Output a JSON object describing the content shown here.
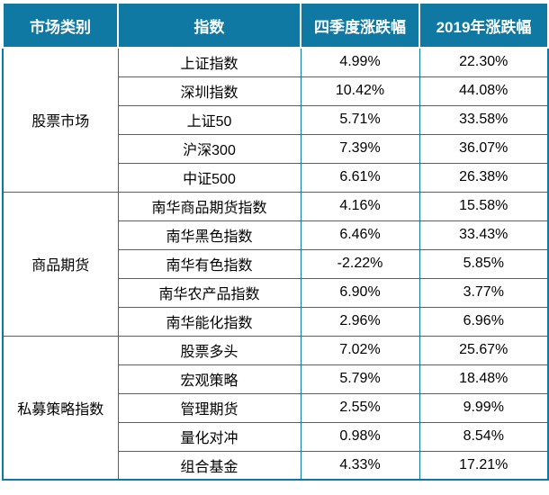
{
  "header": {
    "columns": [
      "市场类别",
      "指数",
      "四季度涨跌幅",
      "2019年涨跌幅"
    ]
  },
  "groups": [
    {
      "category": "股票市场",
      "rows": [
        {
          "index": "上证指数",
          "q4_change": "4.99%",
          "y2019_change": "22.30%"
        },
        {
          "index": "深圳指数",
          "q4_change": "10.42%",
          "y2019_change": "44.08%"
        },
        {
          "index": "上证50",
          "q4_change": "5.71%",
          "y2019_change": "33.58%"
        },
        {
          "index": "沪深300",
          "q4_change": "7.39%",
          "y2019_change": "36.07%"
        },
        {
          "index": "中证500",
          "q4_change": "6.61%",
          "y2019_change": "26.38%"
        }
      ]
    },
    {
      "category": "商品期货",
      "rows": [
        {
          "index": "南华商品期货指数",
          "q4_change": "4.16%",
          "y2019_change": "15.58%"
        },
        {
          "index": "南华黑色指数",
          "q4_change": "6.46%",
          "y2019_change": "33.43%"
        },
        {
          "index": "南华有色指数",
          "q4_change": "-2.22%",
          "y2019_change": "5.85%"
        },
        {
          "index": "南华农产品指数",
          "q4_change": "6.90%",
          "y2019_change": "3.77%"
        },
        {
          "index": "南华能化指数",
          "q4_change": "2.96%",
          "y2019_change": "6.96%"
        }
      ]
    },
    {
      "category": "私募策略指数",
      "rows": [
        {
          "index": "股票多头",
          "q4_change": "7.02%",
          "y2019_change": "25.67%"
        },
        {
          "index": "宏观策略",
          "q4_change": "5.79%",
          "y2019_change": "18.48%"
        },
        {
          "index": "管理期货",
          "q4_change": "2.55%",
          "y2019_change": "9.99%"
        },
        {
          "index": "量化对冲",
          "q4_change": "0.98%",
          "y2019_change": "8.54%"
        },
        {
          "index": "组合基金",
          "q4_change": "4.33%",
          "y2019_change": "17.21%"
        }
      ]
    }
  ],
  "colors": {
    "header_bg": "#0F78A3",
    "grid_line": "#0F78A3",
    "header_text": "#FFFFFF",
    "body_text": "#000000",
    "cell_bg": "#FFFFFF"
  },
  "chart_data": {
    "type": "table",
    "columns": [
      "市场类别",
      "指数",
      "四季度涨跌幅",
      "2019年涨跌幅"
    ],
    "rows": [
      [
        "股票市场",
        "上证指数",
        "4.99%",
        "22.30%"
      ],
      [
        "股票市场",
        "深圳指数",
        "10.42%",
        "44.08%"
      ],
      [
        "股票市场",
        "上证50",
        "5.71%",
        "33.58%"
      ],
      [
        "股票市场",
        "沪深300",
        "7.39%",
        "36.07%"
      ],
      [
        "股票市场",
        "中证500",
        "6.61%",
        "26.38%"
      ],
      [
        "商品期货",
        "南华商品期货指数",
        "4.16%",
        "15.58%"
      ],
      [
        "商品期货",
        "南华黑色指数",
        "6.46%",
        "33.43%"
      ],
      [
        "商品期货",
        "南华有色指数",
        "-2.22%",
        "5.85%"
      ],
      [
        "商品期货",
        "南华农产品指数",
        "6.90%",
        "3.77%"
      ],
      [
        "商品期货",
        "南华能化指数",
        "2.96%",
        "6.96%"
      ],
      [
        "私募策略指数",
        "股票多头",
        "7.02%",
        "25.67%"
      ],
      [
        "私募策略指数",
        "宏观策略",
        "5.79%",
        "18.48%"
      ],
      [
        "私募策略指数",
        "管理期货",
        "2.55%",
        "9.99%"
      ],
      [
        "私募策略指数",
        "量化对冲",
        "0.98%",
        "8.54%"
      ],
      [
        "私募策略指数",
        "组合基金",
        "4.33%",
        "17.21%"
      ]
    ]
  }
}
